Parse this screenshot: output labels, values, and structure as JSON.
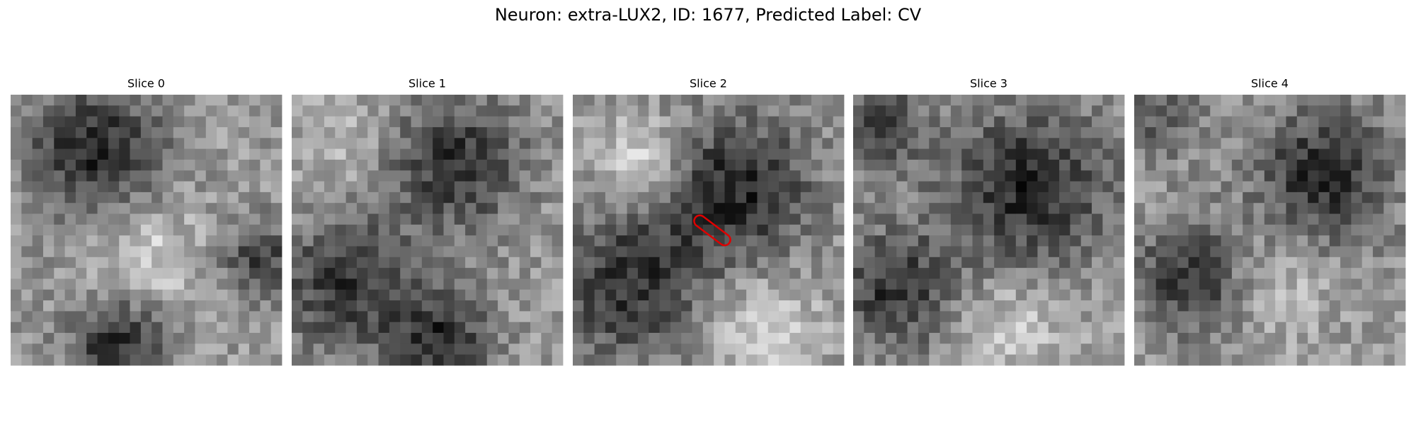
{
  "header": {
    "title": "Neuron: extra-LUX2, ID: 1677, Predicted Label: CV"
  },
  "panels": [
    {
      "title": "Slice 0"
    },
    {
      "title": "Slice 1"
    },
    {
      "title": "Slice 2"
    },
    {
      "title": "Slice 3"
    },
    {
      "title": "Slice 4"
    }
  ]
}
